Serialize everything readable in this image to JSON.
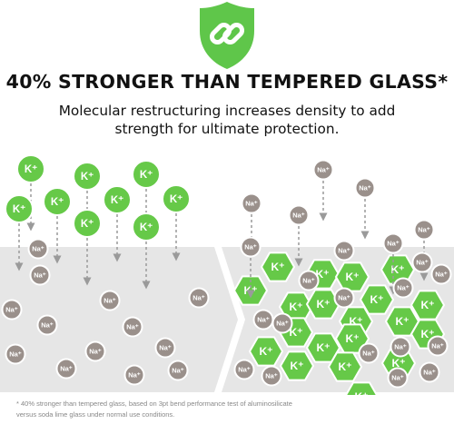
{
  "header": {
    "title": "40% STRONGER THAN TEMPERED GLASS*",
    "subtitle_line1": "Molecular restructuring increases density to add",
    "subtitle_line2": "strength for ultimate protection."
  },
  "icon": {
    "name": "shield-chain-link-icon",
    "color": "#5fc64a"
  },
  "ions": {
    "potassium_label": "K⁺",
    "sodium_label": "Na⁺",
    "potassium_color": "#66c948",
    "sodium_color": "#9a908b"
  },
  "footnote": {
    "line1": "* 40% stronger than tempered glass, based on 3pt bend performance test of aluminosilicate",
    "line2": "versus soda lime glass under normal use conditions."
  }
}
